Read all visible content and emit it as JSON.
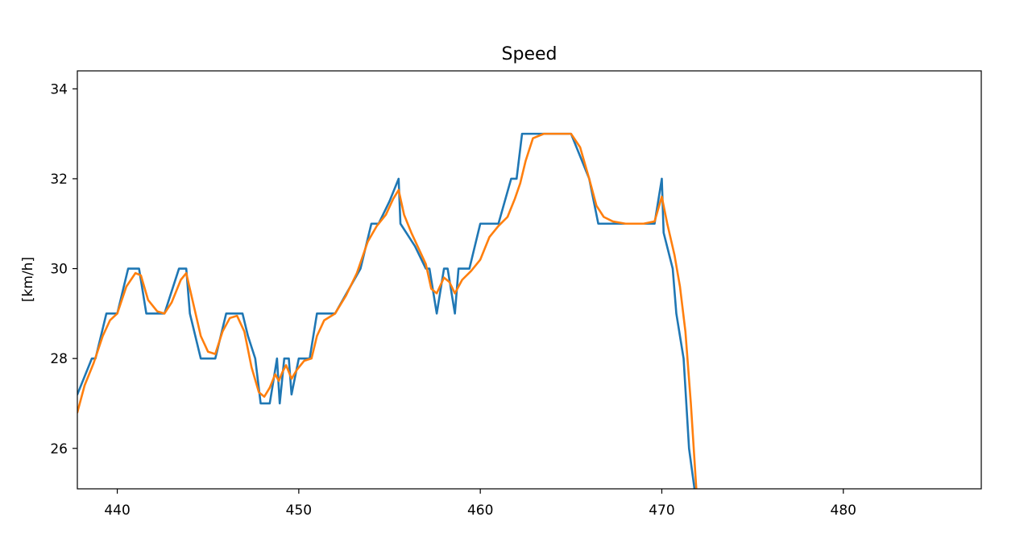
{
  "chart_data": {
    "type": "line",
    "title": "Speed",
    "xlabel": "",
    "ylabel": "[km/h]",
    "xlim": [
      437.8,
      487.6
    ],
    "ylim": [
      25.1,
      34.4
    ],
    "xticks": [
      440,
      450,
      460,
      470,
      480
    ],
    "yticks": [
      26,
      28,
      30,
      32,
      34
    ],
    "grid": false,
    "series": [
      {
        "color": "#1f77b4",
        "x": [
          437.8,
          438.6,
          438.8,
          439.4,
          440.0,
          440.6,
          441.2,
          441.6,
          442.0,
          442.6,
          443.0,
          443.4,
          443.8,
          444.0,
          444.6,
          445.4,
          446.0,
          446.3,
          446.9,
          447.2,
          447.6,
          447.9,
          448.4,
          448.6,
          448.8,
          448.95,
          449.2,
          449.45,
          449.6,
          449.8,
          450.0,
          450.6,
          451.0,
          452.0,
          453.4,
          454.0,
          454.4,
          455.0,
          455.5,
          455.6,
          456.4,
          457.0,
          457.2,
          457.6,
          458.0,
          458.2,
          458.6,
          458.8,
          459.4,
          460.0,
          461.0,
          461.7,
          462.0,
          462.3,
          463.5,
          465.0,
          466.0,
          466.5,
          467.3,
          468.0,
          469.6,
          470.0,
          470.1,
          470.6,
          470.8,
          471.0,
          471.2,
          471.5,
          471.8
        ],
        "y": [
          27.2,
          28.0,
          28.0,
          29.0,
          29.0,
          30.0,
          30.0,
          29.0,
          29.0,
          29.0,
          29.5,
          30.0,
          30.0,
          29.0,
          28.0,
          28.0,
          29.0,
          29.0,
          29.0,
          28.5,
          28.0,
          27.0,
          27.0,
          27.5,
          28.0,
          27.0,
          28.0,
          28.0,
          27.2,
          27.6,
          28.0,
          28.0,
          29.0,
          29.0,
          30.0,
          31.0,
          31.0,
          31.5,
          32.0,
          31.0,
          30.5,
          30.0,
          30.0,
          29.0,
          30.0,
          30.0,
          29.0,
          30.0,
          30.0,
          31.0,
          31.0,
          32.0,
          32.0,
          33.0,
          33.0,
          33.0,
          32.0,
          31.0,
          31.0,
          31.0,
          31.0,
          32.0,
          30.8,
          30.0,
          29.0,
          28.5,
          28.0,
          26.0,
          25.1
        ]
      },
      {
        "color": "#ff7f0e",
        "x": [
          437.8,
          438.2,
          438.7,
          439.2,
          439.6,
          440.0,
          440.5,
          441.0,
          441.3,
          441.7,
          442.2,
          442.6,
          443.0,
          443.5,
          443.8,
          444.2,
          444.6,
          445.0,
          445.4,
          445.8,
          446.2,
          446.6,
          447.0,
          447.4,
          447.8,
          448.1,
          448.4,
          448.7,
          448.9,
          449.1,
          449.3,
          449.6,
          449.9,
          450.3,
          450.7,
          451.0,
          451.4,
          452.0,
          452.6,
          453.2,
          453.8,
          454.3,
          454.8,
          455.2,
          455.5,
          455.8,
          456.2,
          456.6,
          457.0,
          457.3,
          457.6,
          458.0,
          458.3,
          458.6,
          459.0,
          459.5,
          460.0,
          460.5,
          461.0,
          461.5,
          461.9,
          462.2,
          462.5,
          462.9,
          463.5,
          464.2,
          465.0,
          465.5,
          466.0,
          466.4,
          466.8,
          467.3,
          468.0,
          469.0,
          469.6,
          470.0,
          470.3,
          470.7,
          471.0,
          471.3,
          471.6,
          471.9
        ],
        "y": [
          26.8,
          27.4,
          27.9,
          28.5,
          28.85,
          29.0,
          29.6,
          29.9,
          29.85,
          29.3,
          29.05,
          29.0,
          29.25,
          29.75,
          29.9,
          29.2,
          28.5,
          28.15,
          28.1,
          28.6,
          28.9,
          28.95,
          28.6,
          27.8,
          27.25,
          27.15,
          27.35,
          27.65,
          27.5,
          27.7,
          27.85,
          27.55,
          27.75,
          27.95,
          28.0,
          28.5,
          28.85,
          29.0,
          29.4,
          29.9,
          30.6,
          30.95,
          31.2,
          31.55,
          31.75,
          31.2,
          30.8,
          30.45,
          30.1,
          29.55,
          29.45,
          29.8,
          29.7,
          29.45,
          29.75,
          29.95,
          30.2,
          30.7,
          30.95,
          31.15,
          31.55,
          31.9,
          32.4,
          32.9,
          33.0,
          33.0,
          33.0,
          32.7,
          32.0,
          31.4,
          31.15,
          31.05,
          31.0,
          31.0,
          31.05,
          31.6,
          31.0,
          30.3,
          29.6,
          28.6,
          27.0,
          25.1
        ]
      }
    ]
  }
}
